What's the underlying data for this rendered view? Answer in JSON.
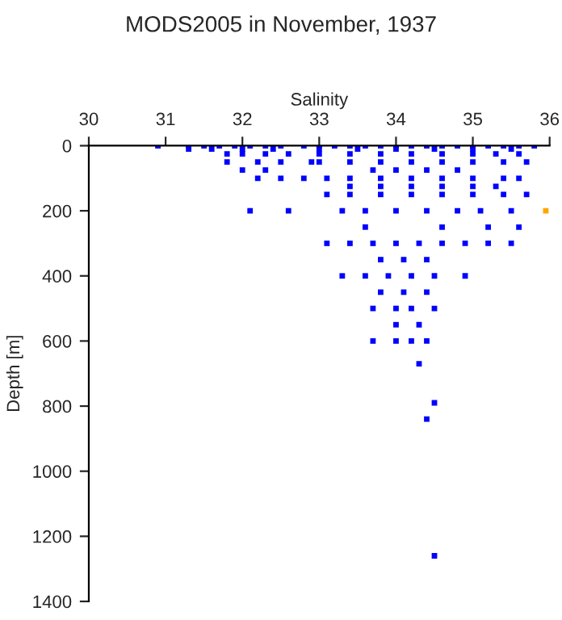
{
  "chart_data": {
    "type": "scatter",
    "title": "MODS2005 in November, 1937",
    "xlabel": "Salinity",
    "ylabel": "Depth [m]",
    "xlim": [
      30,
      36
    ],
    "xticks": [
      30,
      31,
      32,
      33,
      34,
      35,
      36
    ],
    "ylim": [
      1400,
      0
    ],
    "yticks": [
      0,
      200,
      400,
      600,
      800,
      1000,
      1200,
      1400
    ],
    "grid": false,
    "marker": "square",
    "series": [
      {
        "color": "#0000ff",
        "x": [
          30.9,
          31.3,
          31.5,
          31.7,
          31.9,
          32.1,
          32.3,
          32.5,
          32.8,
          33.0,
          33.2,
          33.4,
          33.6,
          33.8,
          34.0,
          34.2,
          34.4,
          34.6,
          34.8,
          35.0,
          35.2,
          35.4,
          35.6,
          35.8,
          31.3,
          31.6,
          32.0,
          32.4,
          33.0,
          33.5,
          34.0,
          34.5,
          35.0,
          35.5,
          31.8,
          32.0,
          32.3,
          32.6,
          33.0,
          33.4,
          33.8,
          34.2,
          34.6,
          35.0,
          35.3,
          35.6,
          31.8,
          32.2,
          32.5,
          32.9,
          33.0,
          33.4,
          33.8,
          34.2,
          34.6,
          35.0,
          35.4,
          35.7,
          32.0,
          32.3,
          33.7,
          34.0,
          34.4,
          34.8,
          32.2,
          32.5,
          32.8,
          33.1,
          33.4,
          33.8,
          34.2,
          34.6,
          35.0,
          35.4,
          35.6,
          33.4,
          33.8,
          34.2,
          34.6,
          35.0,
          35.3,
          33.1,
          33.4,
          33.8,
          34.2,
          34.6,
          35.0,
          35.4,
          35.7,
          32.1,
          32.6,
          33.3,
          33.6,
          34.0,
          34.4,
          34.8,
          35.1,
          35.5,
          33.6,
          34.6,
          35.2,
          35.6,
          33.1,
          33.4,
          33.7,
          34.0,
          34.3,
          34.6,
          34.9,
          35.2,
          35.5,
          33.8,
          34.1,
          34.4,
          33.3,
          33.6,
          33.9,
          34.2,
          34.5,
          34.9,
          33.8,
          34.1,
          34.4,
          33.7,
          34.0,
          34.2,
          34.5,
          34.0,
          34.3,
          33.7,
          34.0,
          34.2,
          34.4,
          34.3,
          34.5,
          34.4,
          34.5
        ],
        "values": [
          0,
          0,
          0,
          0,
          0,
          0,
          0,
          0,
          0,
          0,
          0,
          0,
          0,
          0,
          0,
          0,
          0,
          0,
          0,
          0,
          0,
          0,
          0,
          0,
          10,
          10,
          10,
          10,
          10,
          10,
          10,
          10,
          10,
          10,
          25,
          25,
          25,
          25,
          25,
          25,
          25,
          25,
          25,
          25,
          25,
          25,
          50,
          50,
          50,
          50,
          50,
          50,
          50,
          50,
          50,
          50,
          50,
          50,
          75,
          75,
          75,
          75,
          75,
          75,
          100,
          100,
          100,
          100,
          100,
          100,
          100,
          100,
          100,
          100,
          100,
          125,
          125,
          125,
          125,
          125,
          125,
          150,
          150,
          150,
          150,
          150,
          150,
          150,
          150,
          200,
          200,
          200,
          200,
          200,
          200,
          200,
          200,
          200,
          250,
          250,
          250,
          250,
          300,
          300,
          300,
          300,
          300,
          300,
          300,
          300,
          300,
          350,
          350,
          350,
          400,
          400,
          400,
          400,
          400,
          400,
          450,
          450,
          450,
          500,
          500,
          500,
          500,
          550,
          550,
          600,
          600,
          600,
          600,
          670,
          790,
          840,
          1260
        ]
      },
      {
        "color": "#ffa500",
        "x": [
          35.95
        ],
        "values": [
          200
        ]
      }
    ]
  }
}
